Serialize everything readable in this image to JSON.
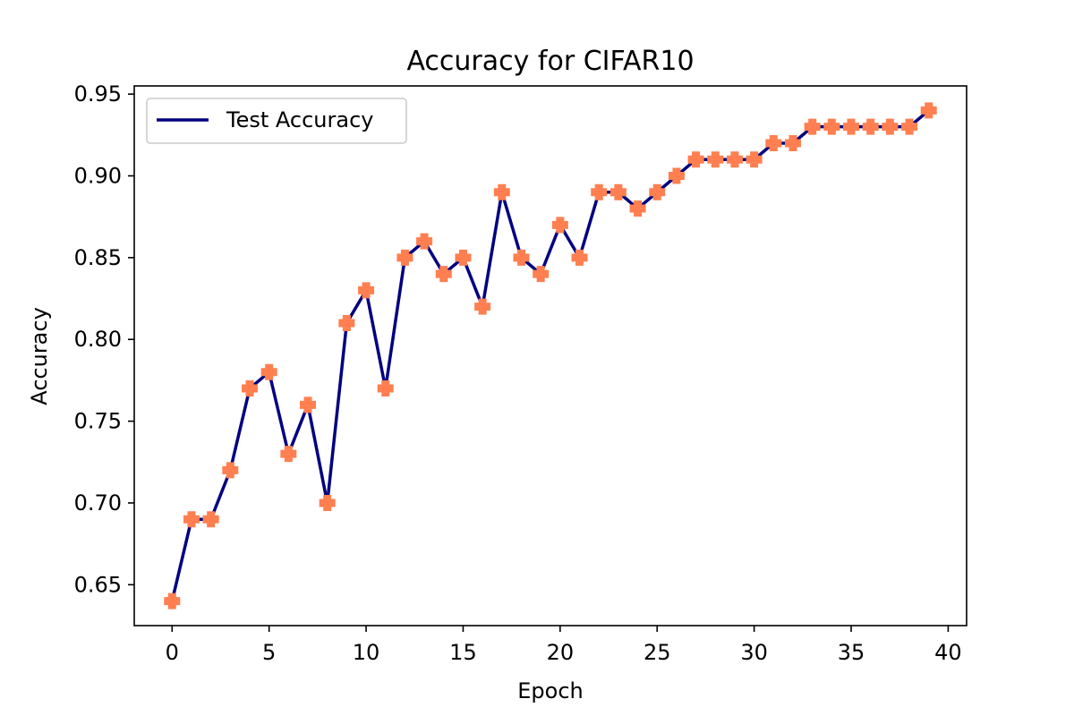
{
  "chart_data": {
    "type": "line",
    "title": "Accuracy for CIFAR10",
    "xlabel": "Epoch",
    "ylabel": "Accuracy",
    "xlim": [
      -1.95,
      40.95
    ],
    "ylim": [
      0.625,
      0.955
    ],
    "x_ticks": [
      0,
      5,
      10,
      15,
      20,
      25,
      30,
      35,
      40
    ],
    "x_tick_labels": [
      "0",
      "5",
      "10",
      "15",
      "20",
      "25",
      "30",
      "35",
      "40"
    ],
    "y_ticks": [
      0.65,
      0.7,
      0.75,
      0.8,
      0.85,
      0.9,
      0.95
    ],
    "y_tick_labels": [
      "0.65",
      "0.70",
      "0.75",
      "0.80",
      "0.85",
      "0.90",
      "0.95"
    ],
    "grid": false,
    "legend_position": "upper-left",
    "series": [
      {
        "name": "Test Accuracy",
        "line_color": "#000080",
        "marker_color": "#ff7f50",
        "marker": "plus-filled",
        "x": [
          0,
          1,
          2,
          3,
          4,
          5,
          6,
          7,
          8,
          9,
          10,
          11,
          12,
          13,
          14,
          15,
          16,
          17,
          18,
          19,
          20,
          21,
          22,
          23,
          24,
          25,
          26,
          27,
          28,
          29,
          30,
          31,
          32,
          33,
          34,
          35,
          36,
          37,
          38,
          39
        ],
        "y": [
          0.64,
          0.69,
          0.69,
          0.72,
          0.77,
          0.78,
          0.73,
          0.76,
          0.7,
          0.81,
          0.83,
          0.77,
          0.85,
          0.86,
          0.84,
          0.85,
          0.82,
          0.89,
          0.85,
          0.84,
          0.87,
          0.85,
          0.89,
          0.89,
          0.88,
          0.89,
          0.9,
          0.91,
          0.91,
          0.91,
          0.91,
          0.92,
          0.92,
          0.93,
          0.93,
          0.93,
          0.93,
          0.93,
          0.93,
          0.94
        ]
      }
    ]
  }
}
